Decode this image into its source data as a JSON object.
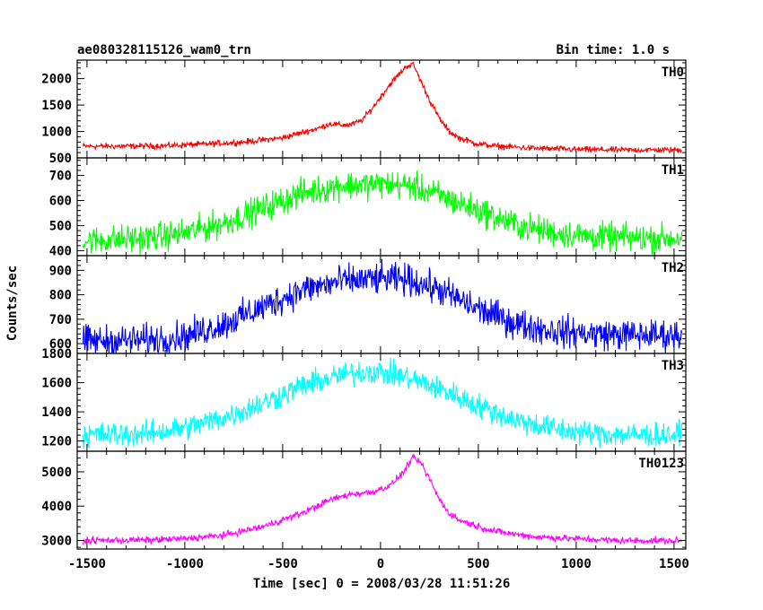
{
  "chart_data": {
    "type": "line",
    "title": "ae080328115126_wam0_trn",
    "subtitle": "Bin time: 1.0 s",
    "xlabel": "Time [sec] 0 = 2008/03/28 11:51:26",
    "ylabel": "Counts/sec",
    "xlim": [
      -1550,
      1560
    ],
    "xticks": [
      -1500,
      -1000,
      -500,
      0,
      500,
      1000,
      1500
    ],
    "panels": [
      {
        "name": "TH0",
        "color": "#ff0000",
        "ylim": [
          500,
          2350
        ],
        "yticks": [
          500,
          1000,
          1500,
          2000
        ],
        "noise": 40,
        "x": [
          -1550,
          -1500,
          -1300,
          -1100,
          -900,
          -700,
          -500,
          -400,
          -300,
          -260,
          -200,
          -150,
          -100,
          -50,
          0,
          50,
          100,
          130,
          160,
          170,
          200,
          250,
          300,
          350,
          400,
          500,
          600,
          800,
          1000,
          1200,
          1400,
          1500,
          1550
        ],
        "y": [
          720,
          720,
          720,
          730,
          760,
          800,
          880,
          980,
          1080,
          1150,
          1120,
          1130,
          1200,
          1400,
          1650,
          1900,
          2100,
          2230,
          2270,
          2250,
          2000,
          1600,
          1250,
          1000,
          880,
          760,
          720,
          680,
          660,
          650,
          650,
          650,
          650
        ]
      },
      {
        "name": "TH1",
        "color": "#00ff00",
        "ylim": [
          380,
          770
        ],
        "yticks": [
          400,
          500,
          600,
          700
        ],
        "noise": 40,
        "x": [
          -1550,
          -1500,
          -1200,
          -1000,
          -800,
          -600,
          -400,
          -200,
          0,
          150,
          300,
          500,
          700,
          900,
          1100,
          1300,
          1500,
          1550
        ],
        "y": [
          440,
          440,
          450,
          470,
          510,
          570,
          630,
          660,
          665,
          660,
          620,
          560,
          500,
          470,
          455,
          450,
          450,
          450
        ]
      },
      {
        "name": "TH2",
        "color": "#0000ff",
        "ylim": [
          560,
          960
        ],
        "yticks": [
          600,
          700,
          800,
          900
        ],
        "noise": 45,
        "x": [
          -1550,
          -1500,
          -1200,
          -1000,
          -800,
          -600,
          -400,
          -200,
          0,
          150,
          300,
          500,
          700,
          900,
          1100,
          1300,
          1500,
          1550
        ],
        "y": [
          610,
          610,
          615,
          630,
          680,
          750,
          820,
          855,
          865,
          860,
          820,
          740,
          680,
          650,
          640,
          635,
          635,
          635
        ]
      },
      {
        "name": "TH3",
        "color": "#00ffff",
        "ylim": [
          1130,
          1800
        ],
        "yticks": [
          1200,
          1400,
          1600,
          1800
        ],
        "noise": 60,
        "x": [
          -1550,
          -1500,
          -1200,
          -1000,
          -800,
          -600,
          -400,
          -200,
          -50,
          100,
          300,
          500,
          700,
          900,
          1100,
          1300,
          1500,
          1550
        ],
        "y": [
          1240,
          1240,
          1250,
          1290,
          1360,
          1460,
          1580,
          1650,
          1680,
          1650,
          1560,
          1440,
          1340,
          1280,
          1250,
          1240,
          1240,
          1240
        ]
      },
      {
        "name": "TH0123",
        "color": "#ff00ff",
        "ylim": [
          2750,
          5600
        ],
        "yticks": [
          3000,
          4000,
          5000
        ],
        "noise": 70,
        "x": [
          -1550,
          -1500,
          -1200,
          -1000,
          -800,
          -600,
          -400,
          -250,
          -150,
          -50,
          50,
          120,
          160,
          200,
          250,
          300,
          350,
          400,
          500,
          600,
          800,
          1000,
          1200,
          1500,
          1550
        ],
        "y": [
          3000,
          3000,
          3010,
          3050,
          3150,
          3400,
          3800,
          4200,
          4350,
          4400,
          4600,
          5000,
          5400,
          5300,
          4800,
          4200,
          3800,
          3600,
          3400,
          3250,
          3100,
          3050,
          3000,
          2990,
          2990
        ]
      }
    ]
  }
}
